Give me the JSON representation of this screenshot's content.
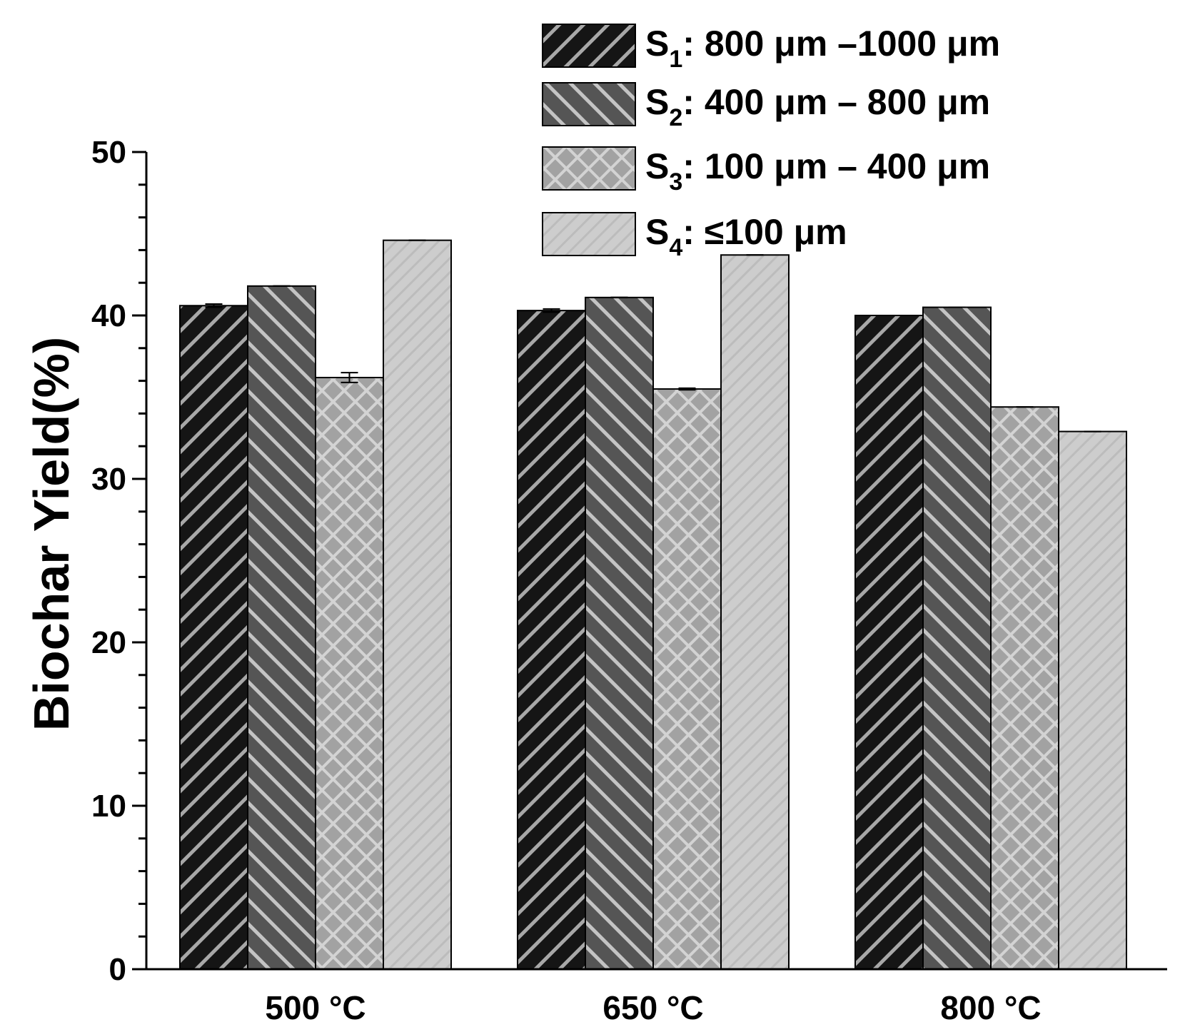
{
  "chart_data": {
    "type": "bar",
    "title": "",
    "xlabel": "",
    "ylabel": "Biochar Yield(%)",
    "ylim": [
      0,
      50
    ],
    "yticks": [
      0,
      10,
      20,
      30,
      40,
      50
    ],
    "categories": [
      "500 °C",
      "650  °C",
      "800  °C"
    ],
    "series": [
      {
        "name": "S1",
        "sub": "1",
        "range": ": 800 μm –1000 μm",
        "values": [
          40.6,
          40.3,
          40.0
        ],
        "errors": [
          0.1,
          0.1,
          0.0
        ],
        "fill": "#151515",
        "stripe": "#a8a8a8",
        "pattern": "fwd"
      },
      {
        "name": "S2",
        "sub": "2",
        "range": ": 400 μm – 800 μm",
        "values": [
          41.8,
          41.1,
          40.5
        ],
        "errors": [
          0.0,
          0.0,
          0.0
        ],
        "fill": "#555555",
        "stripe": "#c4c4c4",
        "pattern": "back"
      },
      {
        "name": "S3",
        "sub": "3",
        "range": ": 100 μm – 400 μm",
        "values": [
          36.2,
          35.5,
          34.4
        ],
        "errors": [
          0.3,
          0.05,
          0.0
        ],
        "fill": "#a2a2a2",
        "stripe": "#d3d3d3",
        "pattern": "cross"
      },
      {
        "name": "S4",
        "sub": "4",
        "range": ": ≤100 μm",
        "values": [
          44.6,
          43.7,
          32.9
        ],
        "errors": [
          0.0,
          0.0,
          0.0
        ],
        "fill": "#cdcdcd",
        "stripe": "#bcbcbc",
        "pattern": "fine"
      }
    ],
    "legend_position": "top-right"
  }
}
